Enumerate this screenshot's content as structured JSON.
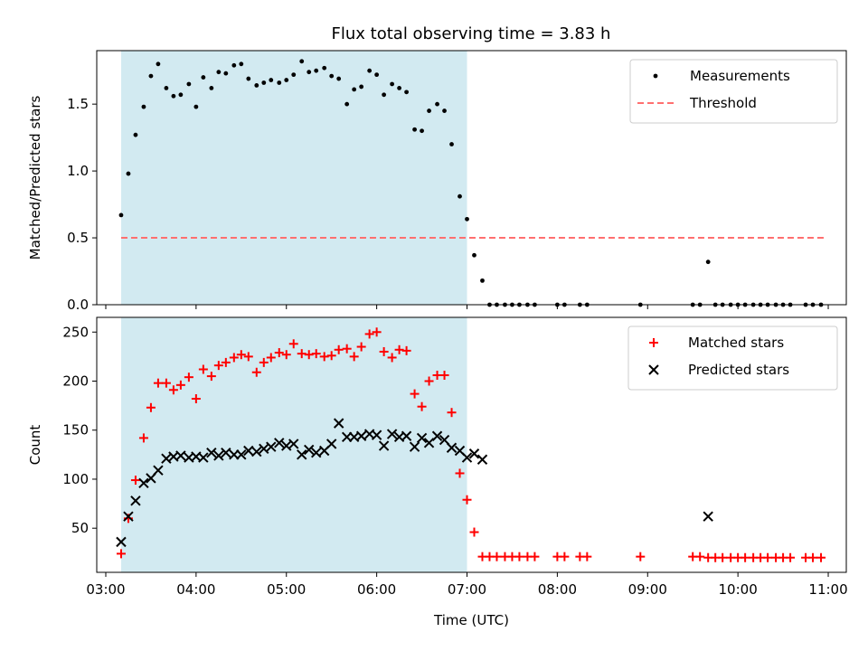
{
  "title": "Flux total observing time = 3.83 h",
  "colors": {
    "shade": "#add8e6",
    "threshold": "#ff6f6f",
    "matched": "#ff0000",
    "predicted": "#000000",
    "measure": "#000000"
  },
  "chart_data": [
    {
      "type": "scatter",
      "ylabel": "Matched/Predicted stars",
      "ylim": [
        0,
        1.9
      ],
      "yticks": [
        0.0,
        0.5,
        1.0,
        1.5
      ],
      "ytick_labels": [
        "0.0",
        "0.5",
        "1.0",
        "1.5"
      ],
      "xlim": [
        2.9,
        11.2
      ],
      "shaded_span": [
        3.17,
        7.0
      ],
      "legend": {
        "placement": "upper-right",
        "entries": [
          "Measurements",
          "Threshold"
        ]
      },
      "threshold": {
        "name": "Threshold",
        "y": 0.5,
        "x": [
          3.17,
          10.95
        ]
      },
      "series": [
        {
          "name": "Measurements",
          "x": [
            3.17,
            3.25,
            3.33,
            3.42,
            3.5,
            3.58,
            3.67,
            3.75,
            3.83,
            3.92,
            4.0,
            4.08,
            4.17,
            4.25,
            4.33,
            4.42,
            4.5,
            4.58,
            4.67,
            4.75,
            4.83,
            4.92,
            5.0,
            5.08,
            5.17,
            5.25,
            5.33,
            5.42,
            5.5,
            5.58,
            5.67,
            5.75,
            5.83,
            5.92,
            6.0,
            6.08,
            6.17,
            6.25,
            6.33,
            6.42,
            6.5,
            6.58,
            6.67,
            6.75,
            6.83,
            6.92,
            7.0,
            7.08,
            7.17,
            7.25,
            7.33,
            7.42,
            7.5,
            7.58,
            7.67,
            7.75,
            8.0,
            8.08,
            8.25,
            8.33,
            8.92,
            9.5,
            9.58,
            9.67,
            9.75,
            9.83,
            9.92,
            10.0,
            10.08,
            10.17,
            10.25,
            10.33,
            10.42,
            10.5,
            10.58,
            10.75,
            10.83,
            10.92
          ],
          "y": [
            0.67,
            0.98,
            1.27,
            1.48,
            1.71,
            1.8,
            1.62,
            1.56,
            1.57,
            1.65,
            1.48,
            1.7,
            1.62,
            1.74,
            1.73,
            1.79,
            1.8,
            1.69,
            1.64,
            1.66,
            1.68,
            1.66,
            1.68,
            1.72,
            1.82,
            1.74,
            1.75,
            1.77,
            1.71,
            1.69,
            1.5,
            1.61,
            1.63,
            1.75,
            1.72,
            1.57,
            1.65,
            1.62,
            1.59,
            1.31,
            1.3,
            1.45,
            1.5,
            1.45,
            1.2,
            0.81,
            0.64,
            0.37,
            0.18,
            0,
            0,
            0,
            0,
            0,
            0,
            0,
            0,
            0,
            0,
            0,
            0,
            0,
            0,
            0.32,
            0,
            0,
            0,
            0,
            0,
            0,
            0,
            0,
            0,
            0,
            0,
            0,
            0,
            0
          ]
        }
      ]
    },
    {
      "type": "scatter",
      "ylabel": "Count",
      "xlabel": "Time (UTC)",
      "ylim": [
        5,
        265
      ],
      "yticks": [
        50,
        100,
        150,
        200,
        250
      ],
      "ytick_labels": [
        "50",
        "100",
        "150",
        "200",
        "250"
      ],
      "xlim": [
        2.9,
        11.2
      ],
      "xticks": [
        3,
        4,
        5,
        6,
        7,
        8,
        9,
        10,
        11
      ],
      "xtick_labels": [
        "03:00",
        "04:00",
        "05:00",
        "06:00",
        "07:00",
        "08:00",
        "09:00",
        "10:00",
        "11:00"
      ],
      "shaded_span": [
        3.17,
        7.0
      ],
      "legend": {
        "placement": "upper-right",
        "entries": [
          "Matched stars",
          "Predicted stars"
        ]
      },
      "series": [
        {
          "name": "Matched stars",
          "x": [
            3.17,
            3.25,
            3.33,
            3.42,
            3.5,
            3.58,
            3.67,
            3.75,
            3.83,
            3.92,
            4.0,
            4.08,
            4.17,
            4.25,
            4.33,
            4.42,
            4.5,
            4.58,
            4.67,
            4.75,
            4.83,
            4.92,
            5.0,
            5.08,
            5.17,
            5.25,
            5.33,
            5.42,
            5.5,
            5.58,
            5.67,
            5.75,
            5.83,
            5.92,
            6.0,
            6.08,
            6.17,
            6.25,
            6.33,
            6.42,
            6.5,
            6.58,
            6.67,
            6.75,
            6.83,
            6.92,
            7.0,
            7.08,
            7.17,
            7.25,
            7.33,
            7.42,
            7.5,
            7.58,
            7.67,
            7.75,
            8.0,
            8.08,
            8.25,
            8.33,
            8.92,
            9.5,
            9.58,
            9.67,
            9.75,
            9.83,
            9.92,
            10.0,
            10.08,
            10.17,
            10.25,
            10.33,
            10.42,
            10.5,
            10.58,
            10.75,
            10.83,
            10.92
          ],
          "y": [
            24,
            60,
            99,
            142,
            173,
            198,
            198,
            191,
            196,
            204,
            182,
            212,
            205,
            216,
            219,
            224,
            227,
            225,
            209,
            219,
            224,
            229,
            227,
            238,
            228,
            227,
            228,
            225,
            226,
            232,
            233,
            225,
            235,
            248,
            250,
            230,
            224,
            232,
            231,
            187,
            174,
            200,
            206,
            206,
            168,
            106,
            79,
            46,
            21,
            21,
            21,
            21,
            21,
            21,
            21,
            21,
            21,
            21,
            21,
            21,
            21,
            21,
            21,
            20,
            20,
            20,
            20,
            20,
            20,
            20,
            20,
            20,
            20,
            20,
            20,
            20,
            20,
            20
          ]
        },
        {
          "name": "Predicted stars",
          "x": [
            3.17,
            3.25,
            3.33,
            3.42,
            3.5,
            3.58,
            3.67,
            3.75,
            3.83,
            3.92,
            4.0,
            4.08,
            4.17,
            4.25,
            4.33,
            4.42,
            4.5,
            4.58,
            4.67,
            4.75,
            4.83,
            4.92,
            5.0,
            5.08,
            5.17,
            5.25,
            5.33,
            5.42,
            5.5,
            5.58,
            5.67,
            5.75,
            5.83,
            5.92,
            6.0,
            6.08,
            6.17,
            6.25,
            6.33,
            6.42,
            6.5,
            6.58,
            6.67,
            6.75,
            6.83,
            6.92,
            7.0,
            7.08,
            7.17,
            9.67
          ],
          "y": [
            36,
            62,
            78,
            96,
            101,
            109,
            121,
            123,
            124,
            122,
            123,
            122,
            127,
            124,
            127,
            125,
            125,
            129,
            128,
            131,
            133,
            137,
            134,
            136,
            125,
            130,
            127,
            129,
            136,
            157,
            143,
            143,
            144,
            146,
            145,
            134,
            146,
            143,
            144,
            133,
            142,
            137,
            144,
            140,
            132,
            129,
            122,
            126,
            120,
            62
          ]
        }
      ]
    }
  ]
}
